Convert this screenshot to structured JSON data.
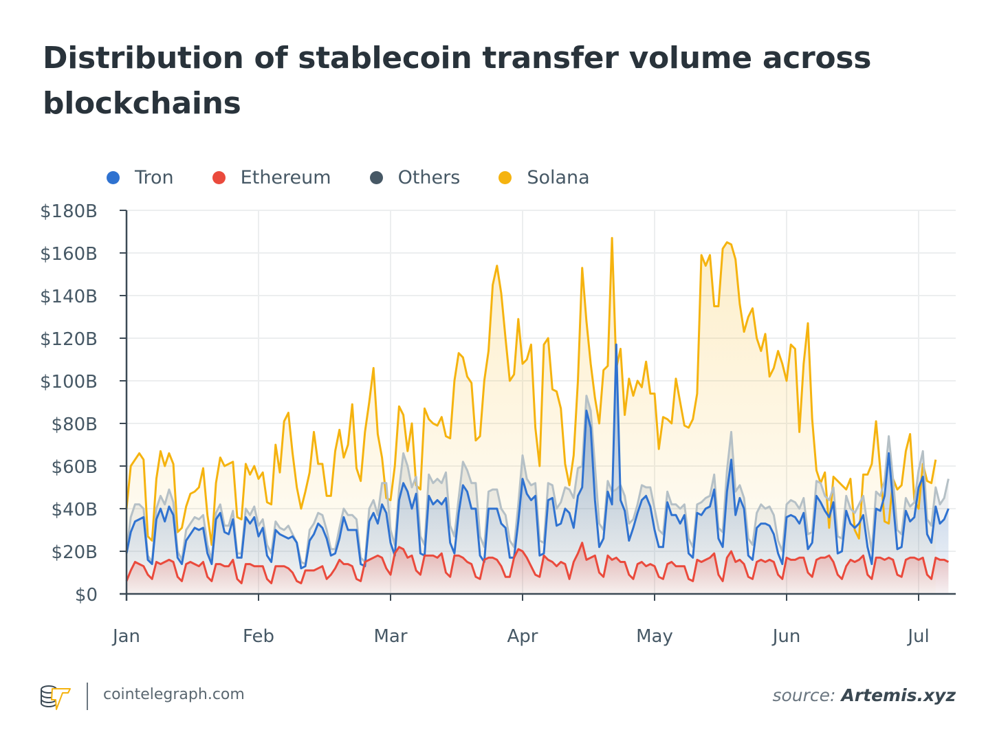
{
  "title": "Distribution of stablecoin transfer volume across blockchains",
  "footer": {
    "site": "cointelegraph.com",
    "source_label": "source:",
    "source_name": "Artemis.xyz",
    "logo_icon": "cointelegraph-logo-icon"
  },
  "chart_data": {
    "type": "area",
    "title": "Distribution of stablecoin transfer volume across blockchains",
    "xlabel": "",
    "ylabel": "",
    "x_start": "Jan 1",
    "x_step": "1 day",
    "x_tick_labels": [
      "Jan",
      "Feb",
      "Mar",
      "Apr",
      "May",
      "Jun",
      "Jul"
    ],
    "x_tick_day_index": [
      0,
      31,
      62,
      93,
      124,
      155,
      186
    ],
    "y_tick_labels": [
      "$0",
      "$20B",
      "$40B",
      "$60B",
      "$80B",
      "$100B",
      "$120B",
      "$140B",
      "$160B",
      "$180B"
    ],
    "y_ticks": [
      0,
      20,
      40,
      60,
      80,
      100,
      120,
      140,
      160,
      180
    ],
    "ylim": [
      0,
      180
    ],
    "grid": true,
    "legend_position": "top-left",
    "stacked": true,
    "units": "USD billions (cumulative line level)",
    "series": [
      {
        "name": "Tron",
        "color": "#2f72d0",
        "values": [
          19,
          29,
          34,
          35,
          36,
          16,
          14,
          35,
          40,
          34,
          41,
          37,
          17,
          14,
          25,
          28,
          31,
          30,
          31,
          19,
          14,
          35,
          38,
          29,
          28,
          35,
          17,
          17,
          36,
          33,
          36,
          27,
          31,
          18,
          15,
          30,
          28,
          27,
          26,
          27,
          24,
          12,
          13,
          25,
          28,
          33,
          31,
          26,
          18,
          19,
          26,
          36,
          30,
          30,
          30,
          14,
          13,
          34,
          38,
          33,
          42,
          38,
          24,
          18,
          44,
          52,
          48,
          40,
          47,
          19,
          18,
          46,
          42,
          44,
          42,
          45,
          24,
          19,
          38,
          51,
          48,
          40,
          40,
          18,
          15,
          40,
          40,
          40,
          33,
          31,
          17,
          17,
          34,
          54,
          47,
          44,
          46,
          18,
          19,
          44,
          45,
          32,
          33,
          40,
          38,
          31,
          46,
          50,
          86,
          78,
          44,
          22,
          26,
          48,
          42,
          117,
          44,
          39,
          25,
          31,
          38,
          44,
          46,
          41,
          30,
          22,
          22,
          43,
          37,
          37,
          33,
          37,
          19,
          17,
          38,
          37,
          40,
          41,
          49,
          26,
          22,
          48,
          63,
          37,
          45,
          40,
          18,
          16,
          31,
          33,
          33,
          32,
          28,
          19,
          14,
          36,
          37,
          36,
          33,
          38,
          21,
          24,
          46,
          43,
          39,
          36,
          43,
          19,
          20,
          39,
          33,
          31,
          33,
          37,
          22,
          14,
          40,
          39,
          46,
          66,
          43,
          21,
          22,
          39,
          34,
          36,
          50,
          55,
          28,
          24,
          41,
          33,
          35,
          40
        ]
      },
      {
        "name": "Ethereum",
        "color": "#ea4a3c",
        "values": [
          6,
          11,
          15,
          14,
          13,
          9,
          7,
          15,
          14,
          15,
          16,
          15,
          8,
          6,
          14,
          15,
          14,
          13,
          15,
          8,
          6,
          14,
          14,
          13,
          13,
          16,
          7,
          5,
          14,
          14,
          13,
          13,
          13,
          7,
          5,
          13,
          13,
          13,
          12,
          10,
          6,
          5,
          11,
          11,
          11,
          12,
          13,
          7,
          9,
          12,
          16,
          14,
          14,
          13,
          7,
          6,
          15,
          16,
          17,
          18,
          17,
          12,
          9,
          19,
          22,
          21,
          17,
          18,
          11,
          9,
          18,
          18,
          18,
          17,
          19,
          10,
          8,
          18,
          18,
          17,
          15,
          14,
          8,
          7,
          16,
          17,
          17,
          16,
          13,
          8,
          8,
          17,
          21,
          20,
          17,
          13,
          9,
          8,
          18,
          16,
          15,
          13,
          15,
          14,
          7,
          15,
          19,
          24,
          16,
          17,
          18,
          10,
          8,
          18,
          16,
          17,
          15,
          15,
          9,
          7,
          14,
          15,
          13,
          14,
          13,
          8,
          7,
          14,
          15,
          13,
          13,
          13,
          7,
          6,
          16,
          15,
          16,
          17,
          19,
          9,
          6,
          17,
          20,
          15,
          16,
          14,
          8,
          7,
          15,
          16,
          15,
          16,
          15,
          9,
          7,
          17,
          16,
          16,
          17,
          17,
          10,
          8,
          16,
          17,
          17,
          18,
          15,
          9,
          7,
          13,
          16,
          15,
          16,
          18,
          9,
          7,
          17,
          17,
          16,
          17,
          16,
          9,
          8,
          16,
          17,
          17,
          16,
          17,
          9,
          7,
          17,
          16,
          16,
          15
        ]
      },
      {
        "name": "Others",
        "color": "#465865",
        "line_color": "#b5c0c6",
        "values": [
          20,
          36,
          42,
          42,
          40,
          18,
          15,
          40,
          46,
          42,
          49,
          43,
          20,
          16,
          30,
          33,
          36,
          35,
          37,
          23,
          16,
          38,
          42,
          32,
          32,
          39,
          19,
          19,
          40,
          37,
          41,
          32,
          35,
          23,
          19,
          34,
          31,
          30,
          32,
          28,
          24,
          15,
          14,
          30,
          33,
          38,
          37,
          30,
          21,
          21,
          31,
          40,
          37,
          37,
          35,
          17,
          15,
          40,
          44,
          37,
          52,
          52,
          30,
          23,
          49,
          66,
          60,
          50,
          55,
          27,
          23,
          56,
          52,
          54,
          52,
          57,
          32,
          27,
          45,
          62,
          58,
          52,
          52,
          27,
          22,
          48,
          49,
          49,
          40,
          37,
          25,
          22,
          42,
          65,
          54,
          51,
          52,
          25,
          24,
          52,
          51,
          40,
          43,
          50,
          49,
          45,
          59,
          60,
          93,
          86,
          60,
          33,
          30,
          53,
          48,
          49,
          51,
          46,
          33,
          35,
          42,
          51,
          50,
          50,
          40,
          30,
          28,
          48,
          42,
          42,
          40,
          42,
          26,
          22,
          42,
          43,
          45,
          46,
          56,
          31,
          29,
          58,
          76,
          48,
          51,
          45,
          26,
          23,
          38,
          42,
          40,
          41,
          37,
          25,
          20,
          42,
          44,
          43,
          40,
          45,
          28,
          29,
          53,
          52,
          46,
          44,
          50,
          27,
          26,
          46,
          40,
          38,
          42,
          46,
          32,
          20,
          48,
          46,
          53,
          74,
          54,
          30,
          28,
          45,
          41,
          43,
          58,
          67,
          35,
          32,
          50,
          42,
          45,
          54
        ]
      },
      {
        "name": "Solana",
        "color": "#f5b30f",
        "values": [
          40,
          60,
          63,
          66,
          63,
          27,
          25,
          54,
          67,
          60,
          66,
          61,
          29,
          31,
          41,
          47,
          48,
          50,
          59,
          37,
          23,
          52,
          64,
          60,
          61,
          62,
          36,
          35,
          61,
          56,
          60,
          54,
          57,
          43,
          42,
          70,
          57,
          81,
          85,
          66,
          50,
          40,
          48,
          57,
          76,
          61,
          61,
          46,
          46,
          67,
          77,
          64,
          70,
          89,
          59,
          53,
          76,
          90,
          106,
          75,
          64,
          45,
          44,
          60,
          88,
          84,
          67,
          80,
          51,
          49,
          87,
          82,
          80,
          79,
          83,
          74,
          73,
          100,
          113,
          111,
          102,
          99,
          72,
          74,
          100,
          114,
          145,
          154,
          141,
          120,
          100,
          103,
          129,
          108,
          110,
          117,
          78,
          60,
          117,
          120,
          96,
          95,
          87,
          61,
          51,
          65,
          100,
          153,
          128,
          108,
          92,
          80,
          105,
          107,
          167,
          106,
          115,
          84,
          101,
          93,
          100,
          97,
          109,
          94,
          94,
          68,
          83,
          82,
          80,
          101,
          90,
          79,
          78,
          82,
          94,
          159,
          154,
          159,
          135,
          135,
          162,
          165,
          164,
          157,
          136,
          123,
          130,
          134,
          120,
          114,
          122,
          102,
          106,
          114,
          108,
          100,
          117,
          115,
          76,
          108,
          127,
          82,
          58,
          52,
          57,
          31,
          55,
          53,
          51,
          49,
          54,
          30,
          26,
          56,
          56,
          61,
          81,
          58,
          34,
          33,
          54,
          49,
          51,
          67,
          75,
          44,
          40,
          61,
          53,
          52,
          63
        ]
      }
    ]
  }
}
